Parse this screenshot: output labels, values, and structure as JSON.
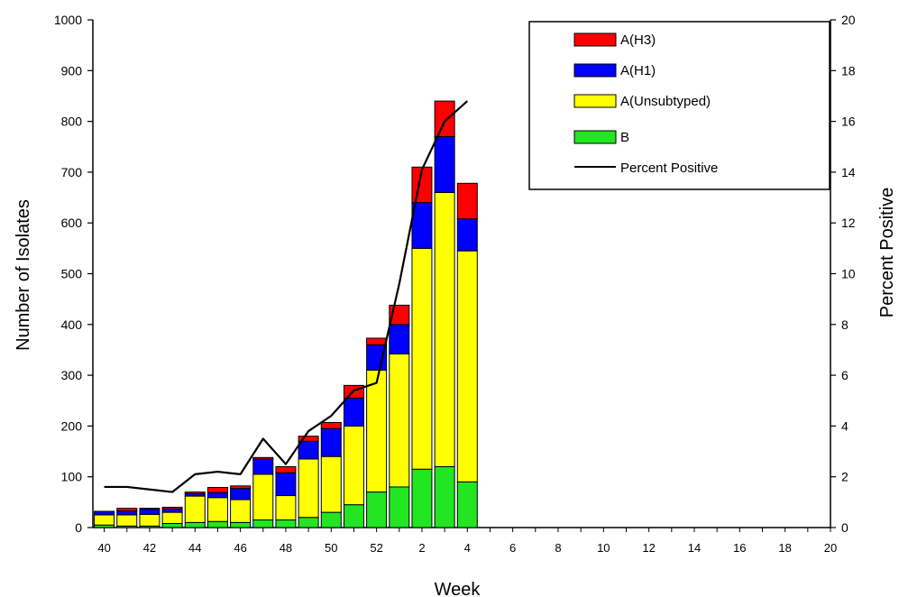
{
  "chart_data": {
    "type": "bar",
    "stacked": true,
    "xlabel": "Week",
    "ylabel": "Number of Isolates",
    "y2label": "Percent Positive",
    "ylim": [
      0,
      1000
    ],
    "y2lim": [
      0,
      20
    ],
    "yticks": [
      0,
      100,
      200,
      300,
      400,
      500,
      600,
      700,
      800,
      900,
      1000
    ],
    "y2ticks": [
      0,
      2,
      4,
      6,
      8,
      10,
      12,
      14,
      16,
      18,
      20
    ],
    "weeks": [
      "40",
      "41",
      "42",
      "43",
      "44",
      "45",
      "46",
      "47",
      "48",
      "49",
      "50",
      "51",
      "52",
      "1",
      "2",
      "3",
      "4",
      "5",
      "6",
      "7",
      "8",
      "9",
      "10",
      "11",
      "12",
      "13",
      "14",
      "15",
      "16",
      "17",
      "18",
      "19",
      "20"
    ],
    "xtick_labels": [
      "40",
      "42",
      "44",
      "46",
      "48",
      "50",
      "52",
      "2",
      "4",
      "6",
      "8",
      "10",
      "12",
      "14",
      "16",
      "18",
      "20"
    ],
    "legend_position": "top-right",
    "series": [
      {
        "name": "B",
        "color": "#22e622",
        "values": [
          5,
          3,
          3,
          8,
          10,
          12,
          10,
          15,
          15,
          20,
          30,
          45,
          70,
          80,
          115,
          120,
          90
        ]
      },
      {
        "name": "A(Unsubtyped)",
        "color": "#ffff00",
        "values": [
          20,
          22,
          23,
          22,
          52,
          47,
          45,
          90,
          48,
          115,
          110,
          155,
          240,
          262,
          435,
          540,
          455
        ]
      },
      {
        "name": "A(H1)",
        "color": "#0000ff",
        "values": [
          7,
          8,
          10,
          7,
          5,
          10,
          22,
          30,
          45,
          35,
          55,
          55,
          50,
          58,
          90,
          110,
          63
        ]
      },
      {
        "name": "A(H3)",
        "color": "#ff0000",
        "values": [
          0,
          5,
          2,
          3,
          3,
          10,
          5,
          3,
          12,
          10,
          12,
          25,
          13,
          38,
          70,
          70,
          70
        ]
      }
    ],
    "line_series": {
      "name": "Percent Positive",
      "color": "#000000",
      "values": [
        1.6,
        1.6,
        1.5,
        1.4,
        2.1,
        2.2,
        2.1,
        3.5,
        2.5,
        3.8,
        4.4,
        5.4,
        5.7,
        9.6,
        14.1,
        16.0,
        16.8
      ]
    }
  }
}
